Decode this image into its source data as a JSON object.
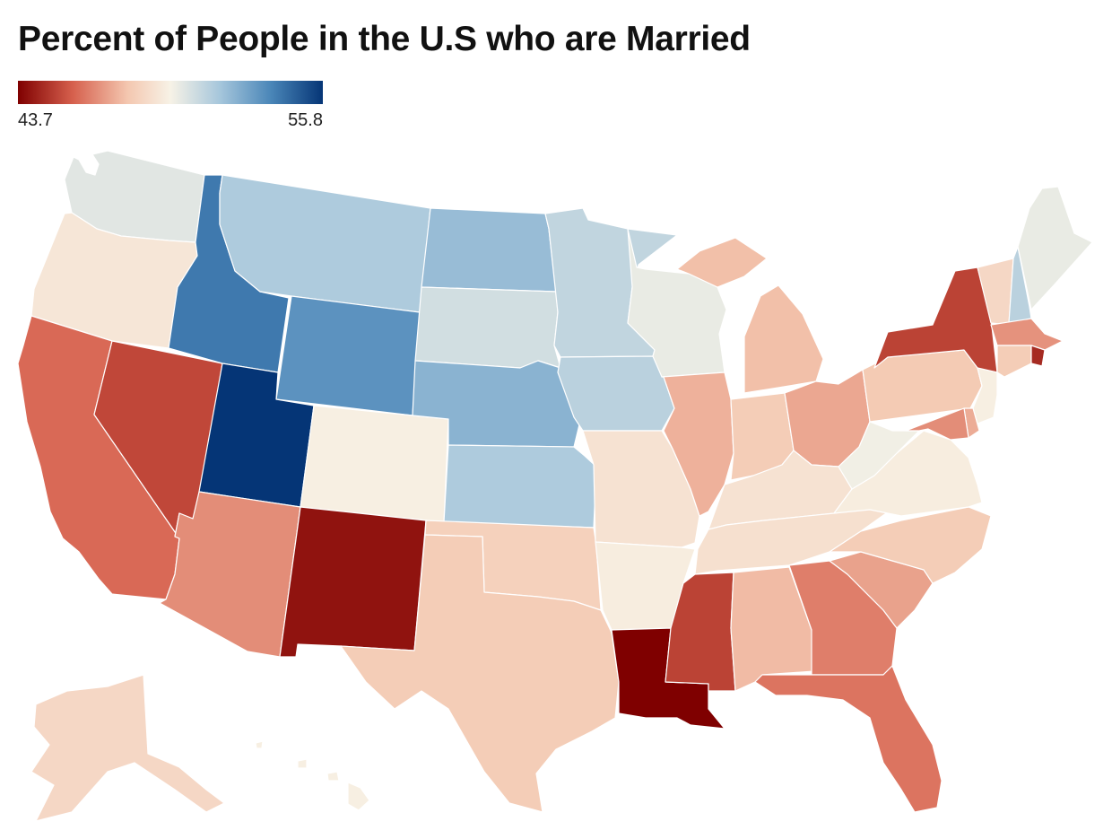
{
  "title": "Percent of People in the U.S who are Married",
  "legend": {
    "min_label": "43.7",
    "max_label": "55.8",
    "min_value": 43.7,
    "max_value": 55.8,
    "colors": [
      "#7f0000",
      "#d6604d",
      "#f4c7b0",
      "#f7f2e6",
      "#a7c7dc",
      "#4a86b8",
      "#053576"
    ]
  },
  "states": [
    {
      "id": "WA",
      "value": 50.3
    },
    {
      "id": "OR",
      "value": 49.2
    },
    {
      "id": "CA",
      "value": 45.9
    },
    {
      "id": "NV",
      "value": 45.2
    },
    {
      "id": "ID",
      "value": 54.1
    },
    {
      "id": "MT",
      "value": 51.6
    },
    {
      "id": "WY",
      "value": 53.4
    },
    {
      "id": "UT",
      "value": 55.8
    },
    {
      "id": "AZ",
      "value": 46.6
    },
    {
      "id": "CO",
      "value": 49.6
    },
    {
      "id": "NM",
      "value": 44.1
    },
    {
      "id": "ND",
      "value": 52.1
    },
    {
      "id": "SD",
      "value": 50.7
    },
    {
      "id": "NE",
      "value": 52.4
    },
    {
      "id": "KS",
      "value": 51.6
    },
    {
      "id": "OK",
      "value": 48.2
    },
    {
      "id": "TX",
      "value": 48.0
    },
    {
      "id": "MN",
      "value": 51.1
    },
    {
      "id": "IA",
      "value": 51.3
    },
    {
      "id": "MO",
      "value": 49.0
    },
    {
      "id": "AR",
      "value": 49.5
    },
    {
      "id": "LA",
      "value": 43.7
    },
    {
      "id": "WI",
      "value": 50.1
    },
    {
      "id": "IL",
      "value": 47.3
    },
    {
      "id": "MI",
      "value": 47.6
    },
    {
      "id": "IN",
      "value": 48.0
    },
    {
      "id": "OH",
      "value": 47.1
    },
    {
      "id": "KY",
      "value": 49.0
    },
    {
      "id": "TN",
      "value": 48.9
    },
    {
      "id": "MS",
      "value": 45.1
    },
    {
      "id": "AL",
      "value": 47.5
    },
    {
      "id": "GA",
      "value": 46.3
    },
    {
      "id": "FL",
      "value": 46.1
    },
    {
      "id": "SC",
      "value": 47.0
    },
    {
      "id": "NC",
      "value": 48.0
    },
    {
      "id": "VA",
      "value": 49.5
    },
    {
      "id": "WV",
      "value": 49.9
    },
    {
      "id": "PA",
      "value": 47.9
    },
    {
      "id": "NY",
      "value": 45.1
    },
    {
      "id": "VT",
      "value": 48.5
    },
    {
      "id": "NH",
      "value": 51.3
    },
    {
      "id": "ME",
      "value": 50.1
    },
    {
      "id": "MA",
      "value": 46.7
    },
    {
      "id": "CT",
      "value": 48.0
    },
    {
      "id": "RI",
      "value": 44.6
    },
    {
      "id": "NJ",
      "value": 49.6
    },
    {
      "id": "DE",
      "value": 47.2
    },
    {
      "id": "MD",
      "value": 46.6
    },
    {
      "id": "AK",
      "value": 48.5
    },
    {
      "id": "HI",
      "value": 49.6
    }
  ]
}
